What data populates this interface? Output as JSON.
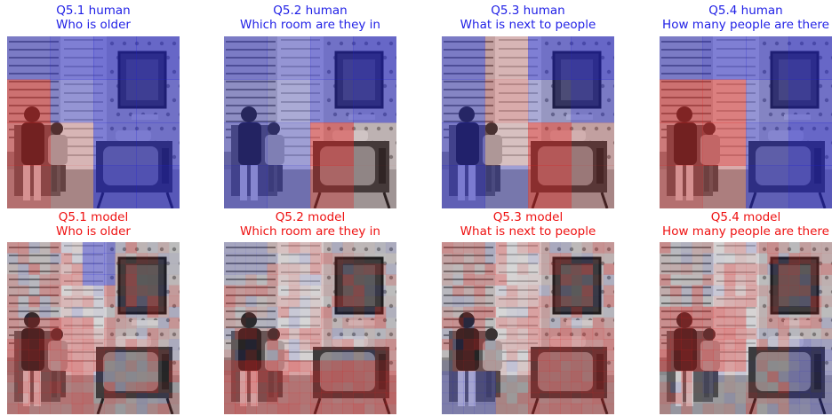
{
  "panels": [
    {
      "id": "q51-human",
      "label": "Q5.1 human",
      "question": "Who is older",
      "source": "human"
    },
    {
      "id": "q52-human",
      "label": "Q5.2 human",
      "question": "Which room are they in",
      "source": "human"
    },
    {
      "id": "q53-human",
      "label": "Q5.3 human",
      "question": "What is next to people",
      "source": "human"
    },
    {
      "id": "q54-human",
      "label": "Q5.4 human",
      "question": "How many people are there",
      "source": "human"
    },
    {
      "id": "q51-model",
      "label": "Q5.1 model",
      "question": "Who is older",
      "source": "model"
    },
    {
      "id": "q52-model",
      "label": "Q5.2 model",
      "question": "Which room are they in",
      "source": "model"
    },
    {
      "id": "q53-model",
      "label": "Q5.3 model",
      "question": "What is next to people",
      "source": "model"
    },
    {
      "id": "q54-model",
      "label": "Q5.4 model",
      "question": "How many people are there",
      "source": "model"
    }
  ],
  "colors": {
    "human_title": "#1f1fe6",
    "model_title": "#ee1111",
    "attention_high": "#e02020",
    "attention_low": "#2020d0"
  }
}
